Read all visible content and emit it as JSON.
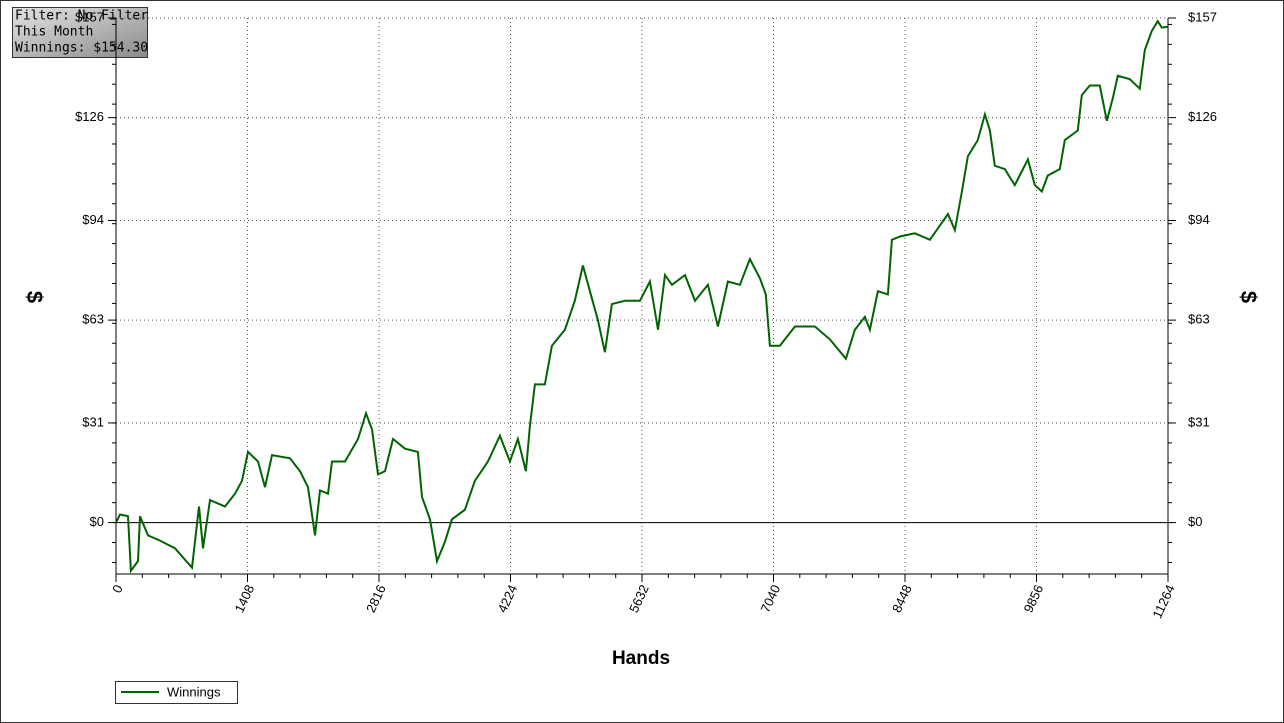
{
  "info_box": {
    "lines": [
      "Filter: No Filter",
      "This Month",
      "Winnings: $154.30"
    ]
  },
  "chart_data": {
    "type": "line",
    "x_label": "Hands",
    "y_label": "$",
    "y2_label": "$",
    "xlim": [
      0,
      11264
    ],
    "xticks": [
      0,
      1408,
      2816,
      4224,
      5632,
      7040,
      8448,
      9856,
      11264
    ],
    "ylim": [
      -16,
      157
    ],
    "yticks": [
      {
        "value": 0,
        "label": "$0"
      },
      {
        "value": 31,
        "label": "$31"
      },
      {
        "value": 63,
        "label": "$63"
      },
      {
        "value": 94,
        "label": "$94"
      },
      {
        "value": 126,
        "label": "$126"
      },
      {
        "value": 157,
        "label": "$157"
      }
    ],
    "y2lim": [
      -16,
      157
    ],
    "y2ticks": [
      {
        "value": 0,
        "label": "$0"
      },
      {
        "value": 31,
        "label": "$31"
      },
      {
        "value": 63,
        "label": "$63"
      },
      {
        "value": 94,
        "label": "$94"
      },
      {
        "value": 126,
        "label": "$126"
      },
      {
        "value": 157,
        "label": "$157"
      }
    ],
    "grid": true,
    "legend": "bottom-left",
    "x": [
      0,
      43,
      128,
      160,
      236,
      257,
      343,
      471,
      632,
      814,
      889,
      932,
      1006,
      1167,
      1274,
      1349,
      1413,
      1520,
      1595,
      1670,
      1863,
      1970,
      2056,
      2131,
      2184,
      2270,
      2313,
      2452,
      2591,
      2677,
      2741,
      2805,
      2880,
      2966,
      3094,
      3233,
      3276,
      3362,
      3437,
      3522,
      3597,
      3736,
      3843,
      3982,
      4111,
      4218,
      4303,
      4389,
      4432,
      4485,
      4592,
      4667,
      4806,
      4913,
      4999,
      5074,
      5160,
      5235,
      5310,
      5449,
      5610,
      5717,
      5803,
      5878,
      5953,
      6092,
      6199,
      6338,
      6445,
      6552,
      6680,
      6787,
      6894,
      6958,
      7001,
      7108,
      7269,
      7483,
      7644,
      7815,
      7912,
      8019,
      8072,
      8158,
      8265,
      8308,
      8393,
      8554,
      8715,
      8907,
      8982,
      9057,
      9121,
      9228,
      9303,
      9357,
      9410,
      9517,
      9624,
      9764,
      9838,
      9913,
      9977,
      10106,
      10159,
      10298,
      10341,
      10427,
      10534,
      10609,
      10673,
      10727,
      10855,
      10962,
      11016,
      11091,
      11155,
      11198,
      11264
    ],
    "series": [
      {
        "name": "Winnings",
        "color": "#006400",
        "values": [
          0,
          2.5,
          2,
          -15,
          -12,
          2,
          -4,
          -5.6,
          -8,
          -14,
          5,
          -8,
          7,
          5,
          9,
          13,
          22,
          19,
          11,
          21,
          20,
          16,
          11,
          -4,
          10,
          9,
          19,
          19,
          26,
          34,
          29,
          15,
          16,
          26,
          23,
          22,
          8,
          1,
          -12,
          -6,
          1,
          4,
          13,
          19,
          27,
          19,
          26,
          16,
          30,
          43,
          43,
          55,
          60,
          69,
          80,
          72,
          63,
          53,
          68,
          69,
          69,
          75,
          60,
          77,
          74,
          77,
          69,
          74,
          61,
          75,
          74,
          82,
          76,
          71,
          55,
          55,
          61,
          61,
          57,
          51,
          60,
          64,
          60,
          72,
          71,
          88,
          89,
          90,
          88,
          96,
          91,
          103,
          114,
          119,
          127,
          122,
          111,
          110,
          105,
          113,
          105,
          103,
          108,
          110,
          119,
          122,
          133,
          136,
          136,
          125,
          132,
          139,
          138,
          135,
          147,
          153,
          156,
          154,
          154.3
        ]
      }
    ]
  }
}
